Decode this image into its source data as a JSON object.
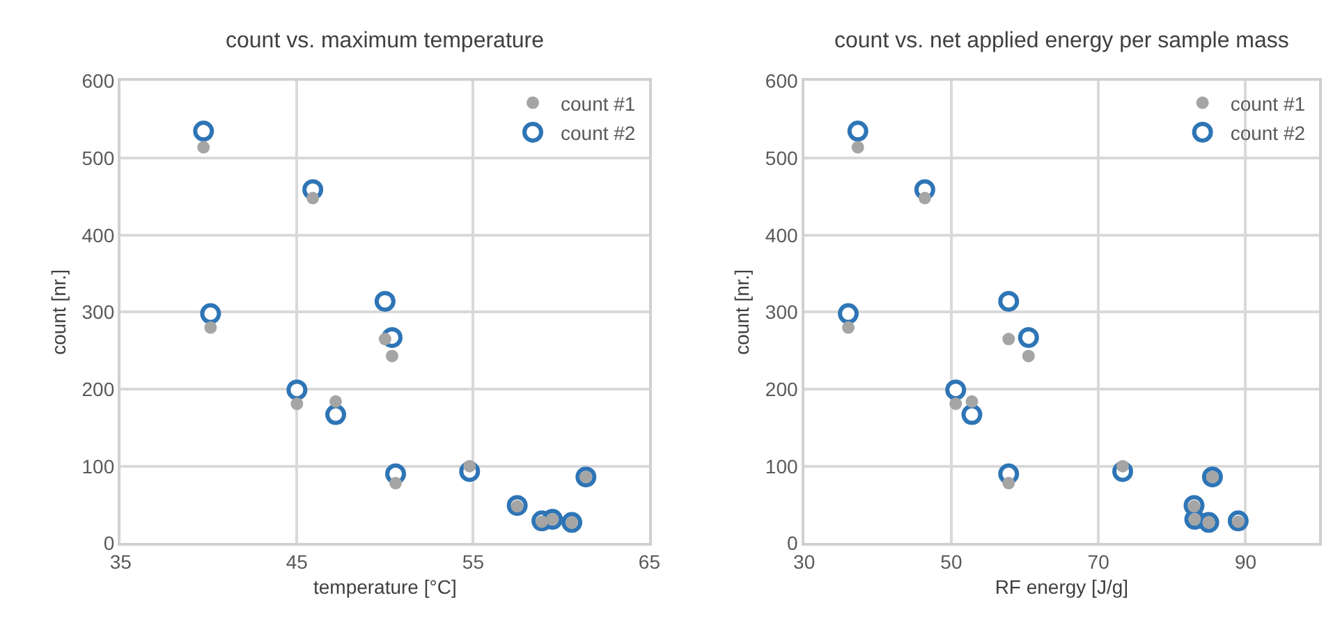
{
  "chart_data": [
    {
      "type": "scatter",
      "title": "count vs. maximum temperature",
      "xlabel": "temperature [°C]",
      "ylabel": "count [nr.]",
      "xlim": [
        35,
        65
      ],
      "xticks": [
        35,
        45,
        55,
        65
      ],
      "ylim": [
        0,
        600
      ],
      "yticks": [
        0,
        100,
        200,
        300,
        400,
        500,
        600
      ],
      "grid": true,
      "legend": "top right",
      "marker": "circle",
      "series": [
        {
          "name": "count #1",
          "color": "#a5a5a5",
          "x": [
            39.7,
            45.9,
            40.1,
            50.0,
            50.4,
            45.0,
            47.2,
            50.6,
            54.8,
            57.5,
            58.9,
            59.5,
            60.6,
            61.4
          ],
          "values": [
            514,
            448,
            280,
            265,
            243,
            181,
            184,
            78,
            100,
            48,
            28,
            31,
            27,
            86
          ]
        },
        {
          "name": "count #2",
          "color": "#2e75b6",
          "x": [
            39.7,
            45.9,
            40.1,
            50.0,
            50.4,
            45.0,
            47.2,
            50.6,
            54.8,
            57.5,
            58.9,
            59.5,
            60.6,
            61.4
          ],
          "values": [
            535,
            459,
            298,
            314,
            267,
            199,
            167,
            90,
            93,
            49,
            29,
            31,
            27,
            86
          ]
        }
      ]
    },
    {
      "type": "scatter",
      "title": "count vs. net applied energy per sample mass",
      "xlabel": "RF energy [J/g]",
      "ylabel": "count [nr.]",
      "xlim": [
        30,
        100
      ],
      "xticks": [
        30,
        50,
        70,
        90
      ],
      "ylim": [
        0,
        600
      ],
      "yticks": [
        0,
        100,
        200,
        300,
        400,
        500,
        600
      ],
      "grid": true,
      "legend": "top right",
      "marker": "circle",
      "series": [
        {
          "name": "count #1",
          "color": "#a5a5a5",
          "x": [
            37.3,
            46.4,
            36.0,
            57.8,
            60.5,
            50.6,
            52.8,
            57.8,
            73.3,
            83.0,
            89.0,
            83.1,
            85.0,
            85.5
          ],
          "values": [
            514,
            448,
            280,
            265,
            243,
            181,
            184,
            78,
            100,
            48,
            28,
            31,
            27,
            86
          ]
        },
        {
          "name": "count #2",
          "color": "#2e75b6",
          "x": [
            37.3,
            46.4,
            36.0,
            57.8,
            60.5,
            50.6,
            52.8,
            57.8,
            73.3,
            83.0,
            89.0,
            83.1,
            85.0,
            85.5
          ],
          "values": [
            535,
            459,
            298,
            314,
            267,
            199,
            167,
            90,
            93,
            49,
            29,
            31,
            27,
            86
          ]
        }
      ]
    }
  ]
}
